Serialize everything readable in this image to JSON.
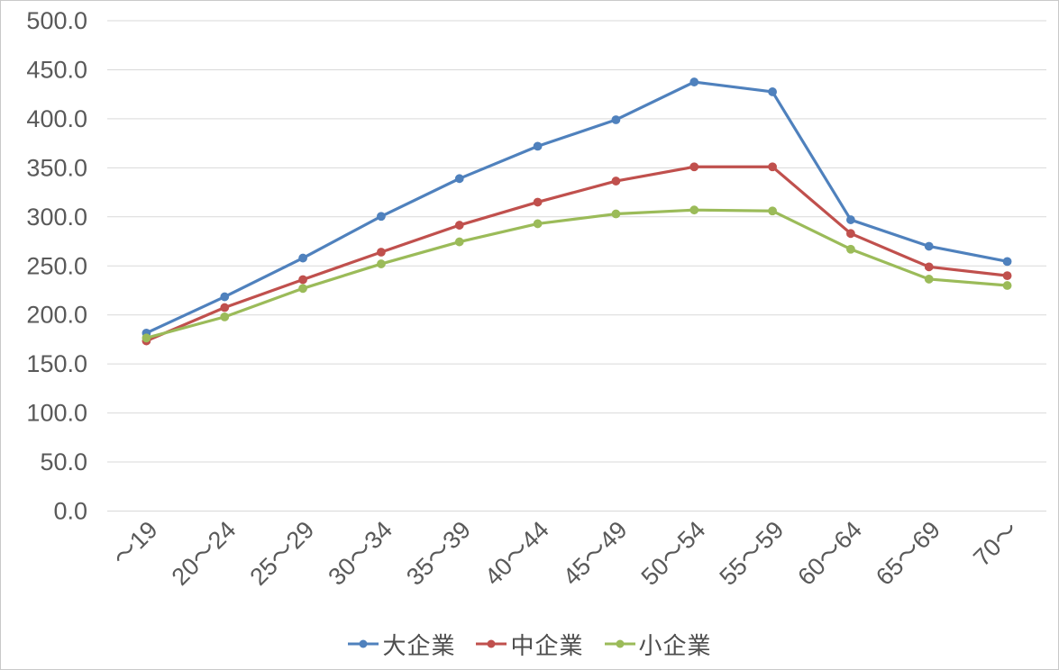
{
  "chart_data": {
    "type": "line",
    "title": "",
    "xlabel": "",
    "ylabel": "",
    "categories": [
      "～19",
      "20～24",
      "25～29",
      "30～34",
      "35～39",
      "40～44",
      "45～49",
      "50～54",
      "55～59",
      "60～64",
      "65～69",
      "70～"
    ],
    "series": [
      {
        "name": "大企業",
        "color": "#4F81BD",
        "values": [
          181.5,
          218.5,
          258.0,
          300.5,
          339.0,
          372.0,
          399.0,
          437.5,
          427.5,
          297.0,
          270.0,
          254.5
        ]
      },
      {
        "name": "中企業",
        "color": "#C0504D",
        "values": [
          173.5,
          207.5,
          236.0,
          264.0,
          291.5,
          315.0,
          336.5,
          351.0,
          351.0,
          283.0,
          249.0,
          240.0
        ]
      },
      {
        "name": "小企業",
        "color": "#9BBB59",
        "values": [
          176.5,
          198.0,
          227.0,
          252.0,
          274.5,
          293.0,
          303.0,
          307.0,
          306.0,
          267.0,
          236.5,
          230.0
        ]
      }
    ],
    "ylim": [
      0,
      500
    ],
    "y_tick_step": 50,
    "y_tick_labels": [
      "0.0",
      "50.0",
      "100.0",
      "150.0",
      "200.0",
      "250.0",
      "300.0",
      "350.0",
      "400.0",
      "450.0",
      "500.0"
    ],
    "grid": "horizontal-only",
    "legend_position": "bottom-center",
    "marker": "circle",
    "x_label_rotation_deg": -45
  },
  "colors": {
    "background": "#FFFFFF",
    "gridline": "#D9D9D9",
    "axis_text": "#595959",
    "legend_text": "#4D4D4D",
    "frame_border": "#C9C9C9"
  }
}
